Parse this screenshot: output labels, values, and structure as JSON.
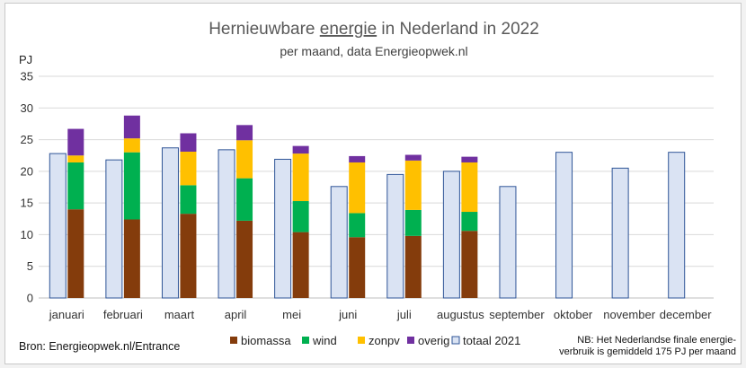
{
  "chart_data": {
    "type": "bar",
    "title_parts": [
      "Hernieuwbare ",
      "energie",
      " in Nederland in 2022"
    ],
    "subtitle": "per maand, data Energieopwek.nl",
    "ylabel": "PJ",
    "ylim": [
      0,
      35
    ],
    "yticks": [
      "0",
      "5",
      "10",
      "15",
      "20",
      "25",
      "30",
      "35"
    ],
    "categories": [
      "januari",
      "februari",
      "maart",
      "april",
      "mei",
      "juni",
      "juli",
      "augustus",
      "september",
      "oktober",
      "november",
      "december"
    ],
    "stacked_series": [
      {
        "name": "biomassa",
        "color": "#843c0c",
        "values": [
          14.0,
          12.4,
          13.3,
          12.2,
          10.4,
          9.6,
          9.8,
          10.6,
          null,
          null,
          null,
          null
        ]
      },
      {
        "name": "wind",
        "color": "#00b050",
        "values": [
          7.4,
          10.6,
          4.5,
          6.7,
          4.9,
          3.8,
          4.1,
          3.0,
          null,
          null,
          null,
          null
        ]
      },
      {
        "name": "zonpv",
        "color": "#ffc000",
        "values": [
          1.1,
          2.2,
          5.3,
          6.0,
          7.5,
          8.0,
          7.8,
          7.8,
          null,
          null,
          null,
          null
        ]
      },
      {
        "name": "overig",
        "color": "#7030a0",
        "values": [
          4.2,
          3.6,
          2.9,
          2.4,
          1.2,
          1.0,
          0.9,
          0.9,
          null,
          null,
          null,
          null
        ]
      }
    ],
    "comparison_series": {
      "name": "totaal 2021",
      "color": "#dae3f3",
      "border": "#2f5597",
      "values": [
        22.8,
        21.8,
        23.7,
        23.4,
        21.9,
        17.6,
        19.5,
        20.0,
        17.6,
        23.0,
        20.5,
        23.0
      ]
    },
    "legend": [
      "biomassa",
      "wind",
      "zonpv",
      "overig",
      "totaal 2021"
    ],
    "gridlines": true
  },
  "source": "Bron: Energieopwek.nl/Entrance",
  "note_lines": [
    "NB: Het Nederlandse finale energie-",
    "verbruik is gemiddeld 175 PJ per maand"
  ],
  "colors": {
    "gridline": "#d9d9d9",
    "axis": "#bfbfbf",
    "frame_bg": "#ffffff"
  }
}
